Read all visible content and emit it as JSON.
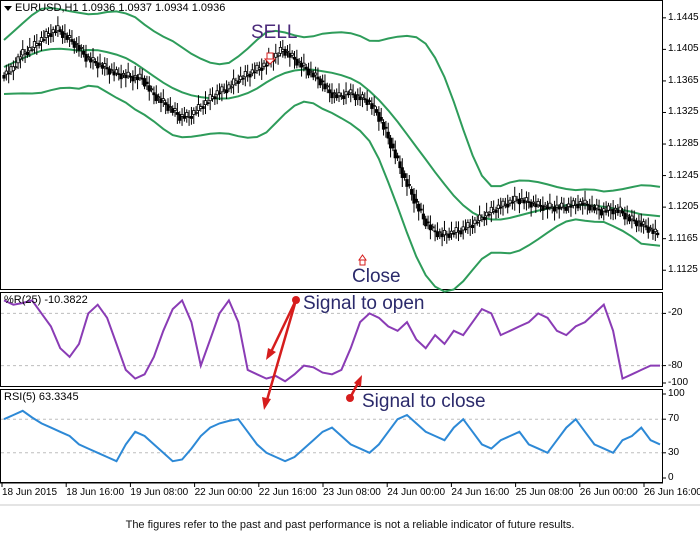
{
  "main_panel": {
    "title": "EURUSD,H1  1.0936 1.0937 1.0934 1.0936",
    "y_ticks": [
      "1.1445",
      "1.1405",
      "1.1365",
      "1.1325",
      "1.1285",
      "1.1245",
      "1.1205",
      "1.1165",
      "1.1125"
    ]
  },
  "wpr_panel": {
    "title": "%R(25) -10.3822",
    "y_ticks": [
      "-20",
      "-80",
      "-100"
    ]
  },
  "rsi_panel": {
    "title": "RSI(5) 63.3345",
    "y_ticks": [
      "100",
      "70",
      "30",
      "0"
    ]
  },
  "x_axis": {
    "labels": [
      "18 Jun 2015",
      "18 Jun 16:00",
      "19 Jun 08:00",
      "22 Jun 00:00",
      "22 Jun 16:00",
      "23 Jun 08:00",
      "24 Jun 00:00",
      "24 Jun 16:00",
      "25 Jun 08:00",
      "26 Jun 00:00",
      "26 Jun 16:00"
    ]
  },
  "annotations": {
    "sell": "SELL",
    "close": "Close",
    "signal_open": "Signal to open",
    "signal_close": "Signal to close"
  },
  "footer": {
    "disclaimer": "The figures refer to the past and past performance is not a reliable indicator of future results."
  },
  "colors": {
    "bands": "#2e9c5a",
    "wpr_line": "#8a3cb5",
    "rsi_line": "#2d89d6",
    "arrows": "#d61d1d",
    "candles": "#000000"
  },
  "chart_data": [
    {
      "type": "candlestick",
      "series": [
        {
          "name": "EURUSD,H1",
          "values": [
            1.1372,
            1.1378,
            1.1398,
            1.1405,
            1.1415,
            1.1425,
            1.143,
            1.142,
            1.141,
            1.1395,
            1.1388,
            1.1382,
            1.1375,
            1.1372,
            1.137,
            1.1368,
            1.135,
            1.134,
            1.133,
            1.132,
            1.132,
            1.133,
            1.134,
            1.135,
            1.1355,
            1.1365,
            1.1372,
            1.1378,
            1.1385,
            1.1395,
            1.1405,
            1.1395,
            1.1385,
            1.1375,
            1.1365,
            1.135,
            1.1345,
            1.135,
            1.1345,
            1.134,
            1.1325,
            1.13,
            1.127,
            1.124,
            1.1215,
            1.119,
            1.1175,
            1.117,
            1.1172,
            1.1176,
            1.1182,
            1.119,
            1.1198,
            1.1205,
            1.121,
            1.1215,
            1.1212,
            1.1208,
            1.1205,
            1.1205,
            1.1205,
            1.1208,
            1.121,
            1.1205,
            1.12,
            1.1202,
            1.12,
            1.119,
            1.1185,
            1.1178,
            1.117
          ]
        }
      ],
      "ylim": [
        1.1105,
        1.146
      ]
    },
    {
      "type": "line",
      "series": [
        {
          "name": "%R(25)",
          "values": [
            -5,
            -10,
            -8,
            -5,
            -20,
            -35,
            -60,
            -70,
            -55,
            -20,
            -10,
            -25,
            -55,
            -85,
            -95,
            -90,
            -70,
            -40,
            -15,
            -5,
            -30,
            -80,
            -50,
            -20,
            -5,
            -30,
            -85,
            -90,
            -95,
            -92,
            -98,
            -90,
            -80,
            -82,
            -88,
            -90,
            -85,
            -60,
            -30,
            -20,
            -25,
            -35,
            -40,
            -30,
            -50,
            -60,
            -45,
            -55,
            -40,
            -45,
            -30,
            -15,
            -20,
            -45,
            -40,
            -35,
            -30,
            -20,
            -25,
            -40,
            -45,
            -35,
            -30,
            -20,
            -10,
            -40,
            -95,
            -90,
            -85,
            -80,
            -80
          ]
        }
      ],
      "ylim": [
        -100,
        0
      ]
    },
    {
      "type": "line",
      "series": [
        {
          "name": "RSI(5)",
          "values": [
            70,
            75,
            80,
            72,
            65,
            60,
            55,
            50,
            40,
            35,
            30,
            25,
            20,
            40,
            55,
            50,
            40,
            30,
            20,
            22,
            35,
            50,
            60,
            65,
            68,
            70,
            55,
            40,
            30,
            25,
            20,
            25,
            35,
            45,
            55,
            60,
            50,
            40,
            35,
            30,
            40,
            55,
            70,
            75,
            65,
            55,
            50,
            45,
            60,
            70,
            55,
            40,
            35,
            45,
            50,
            55,
            40,
            35,
            30,
            45,
            60,
            70,
            55,
            40,
            35,
            30,
            45,
            50,
            60,
            45,
            40
          ]
        }
      ],
      "ylim": [
        0,
        100
      ]
    }
  ]
}
